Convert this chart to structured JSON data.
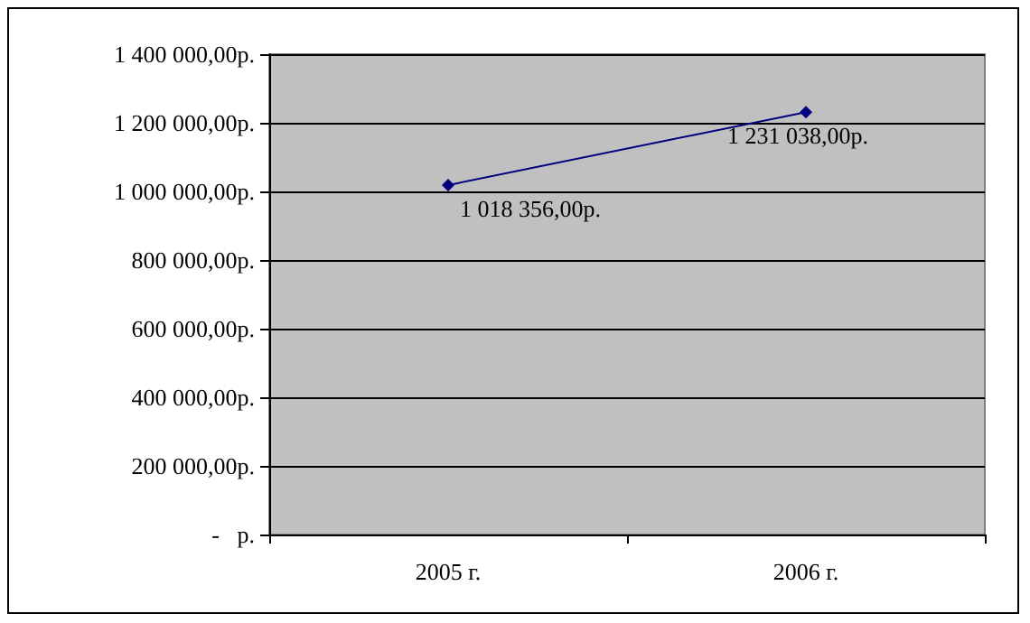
{
  "chart_data": {
    "type": "line",
    "categories": [
      "2005 г.",
      "2006 г."
    ],
    "series": [
      {
        "color": "#000080",
        "values": [
          1018356,
          1231038
        ],
        "value_labels": [
          "1 018 356,00р.",
          "1 231 038,00р."
        ]
      }
    ],
    "ylim": [
      0,
      1400000
    ],
    "yticks": [
      {
        "value": 0,
        "label": "-   р."
      },
      {
        "value": 200000,
        "label": "200 000,00р."
      },
      {
        "value": 400000,
        "label": "400 000,00р."
      },
      {
        "value": 600000,
        "label": "600 000,00р."
      },
      {
        "value": 800000,
        "label": "800 000,00р."
      },
      {
        "value": 1000000,
        "label": "1 000 000,00р."
      },
      {
        "value": 1200000,
        "label": "1 200 000,00р."
      },
      {
        "value": 1400000,
        "label": "1 400 000,00р."
      }
    ],
    "grid": "y",
    "marker": "diamond",
    "line_style": "solid"
  }
}
